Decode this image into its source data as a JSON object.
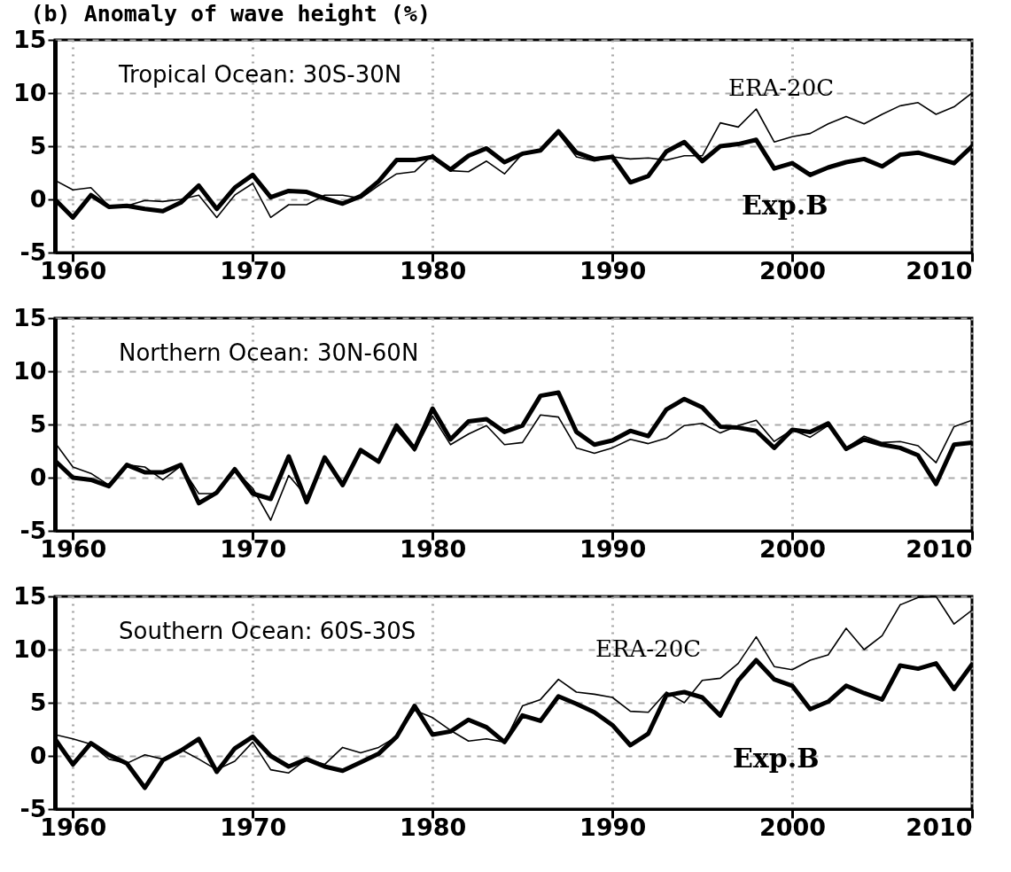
{
  "chart_data": [
    {
      "type": "line",
      "title": "(b) Anomaly of wave height (%)",
      "annotations": [
        "Tropical Ocean: 30S-30N"
      ],
      "xlim": [
        1959,
        2010
      ],
      "xticks": [
        1960,
        1970,
        1980,
        1990,
        2000,
        2010
      ],
      "ylim": [
        -5,
        15
      ],
      "yticks": [
        -5,
        0,
        5,
        10,
        15
      ],
      "grid": true,
      "marker": "none",
      "line_style": "solid",
      "x": [
        1959,
        1960,
        1961,
        1962,
        1963,
        1964,
        1965,
        1966,
        1967,
        1968,
        1969,
        1970,
        1971,
        1972,
        1973,
        1974,
        1975,
        1976,
        1977,
        1978,
        1979,
        1980,
        1981,
        1982,
        1983,
        1984,
        1985,
        1986,
        1987,
        1988,
        1989,
        1990,
        1991,
        1992,
        1993,
        1994,
        1995,
        1996,
        1997,
        1998,
        1999,
        2000,
        2001,
        2002,
        2003,
        2004,
        2005,
        2006,
        2007,
        2008,
        2009,
        2010
      ],
      "series": [
        {
          "name": "Exp.B",
          "color": "#000000",
          "values": [
            0,
            -1.7,
            0.4,
            -0.7,
            -0.6,
            -0.9,
            -1.1,
            -0.3,
            1.3,
            -0.9,
            1.1,
            2.3,
            0.2,
            0.8,
            0.7,
            0.1,
            -0.4,
            0.3,
            1.7,
            3.7,
            3.7,
            4.0,
            2.8,
            4.1,
            4.8,
            3.5,
            4.3,
            4.6,
            6.4,
            4.4,
            3.8,
            4.0,
            1.6,
            2.2,
            4.5,
            5.4,
            3.6,
            5.0,
            5.2,
            5.6,
            2.9,
            3.4,
            2.3,
            3.0,
            3.5,
            3.8,
            3.1,
            4.2,
            4.4,
            3.9,
            3.4,
            5.0
          ]
        },
        {
          "name": "ERA-20C",
          "color": "#000000",
          "values": [
            1.8,
            0.9,
            1.1,
            -0.6,
            -0.6,
            -0.1,
            -0.2,
            0,
            0.4,
            -1.7,
            0.4,
            1.5,
            -1.7,
            -0.5,
            -0.5,
            0.4,
            0.4,
            0.1,
            1.3,
            2.4,
            2.6,
            4.2,
            2.7,
            2.6,
            3.6,
            2.4,
            4.3,
            4.7,
            6.2,
            4.0,
            3.6,
            4.0,
            3.8,
            3.9,
            3.7,
            4.1,
            4.1,
            7.2,
            6.8,
            8.5,
            5.4,
            5.9,
            6.2,
            7.1,
            7.8,
            7.1,
            8.0,
            8.8,
            9.1,
            8.0,
            8.7,
            10.0
          ]
        }
      ]
    },
    {
      "type": "line",
      "annotations": [
        "Northern Ocean: 30N-60N"
      ],
      "xlim": [
        1959,
        2010
      ],
      "xticks": [
        1960,
        1970,
        1980,
        1990,
        2000,
        2010
      ],
      "ylim": [
        -5,
        15
      ],
      "yticks": [
        -5,
        0,
        5,
        10,
        15
      ],
      "grid": true,
      "marker": "none",
      "line_style": "solid",
      "x": [
        1959,
        1960,
        1961,
        1962,
        1963,
        1964,
        1965,
        1966,
        1967,
        1968,
        1969,
        1970,
        1971,
        1972,
        1973,
        1974,
        1975,
        1976,
        1977,
        1978,
        1979,
        1980,
        1981,
        1982,
        1983,
        1984,
        1985,
        1986,
        1987,
        1988,
        1989,
        1990,
        1991,
        1992,
        1993,
        1994,
        1995,
        1996,
        1997,
        1998,
        1999,
        2000,
        2001,
        2002,
        2003,
        2004,
        2005,
        2006,
        2007,
        2008,
        2009,
        2010
      ],
      "series": [
        {
          "color": "#000000",
          "values": [
            1.6,
            0,
            -0.2,
            -0.8,
            1.2,
            0.5,
            0.5,
            1.2,
            -2.4,
            -1.4,
            0.8,
            -1.5,
            -2.0,
            2.0,
            -2.3,
            1.9,
            -0.7,
            2.6,
            1.5,
            4.9,
            2.7,
            6.5,
            3.6,
            5.3,
            5.5,
            4.3,
            4.9,
            7.7,
            8.0,
            4.3,
            3.1,
            3.5,
            4.4,
            3.9,
            6.4,
            7.4,
            6.6,
            4.8,
            4.7,
            4.4,
            2.8,
            4.5,
            4.3,
            5.1,
            2.7,
            3.6,
            3.1,
            2.8,
            2.1,
            -0.6,
            3.1,
            3.3
          ]
        },
        {
          "color": "#000000",
          "values": [
            3.3,
            1.0,
            0.4,
            -0.7,
            1.2,
            1.0,
            -0.2,
            1.1,
            -1.5,
            -1.5,
            0.7,
            -1.0,
            -4.0,
            0.2,
            -1.8,
            1.7,
            -0.6,
            2.4,
            1.6,
            4.5,
            2.5,
            5.8,
            3.1,
            4.1,
            4.9,
            3.1,
            3.3,
            5.9,
            5.7,
            2.8,
            2.3,
            2.8,
            3.6,
            3.2,
            3.7,
            4.9,
            5.1,
            4.2,
            4.9,
            5.4,
            3.4,
            4.5,
            3.8,
            4.9,
            2.8,
            3.9,
            3.3,
            3.4,
            3.0,
            1.4,
            4.8,
            5.4
          ]
        }
      ]
    },
    {
      "type": "line",
      "annotations": [
        "Southern Ocean: 60S-30S"
      ],
      "xlim": [
        1959,
        2010
      ],
      "xticks": [
        1960,
        1970,
        1980,
        1990,
        2000,
        2010
      ],
      "ylim": [
        -5,
        15
      ],
      "yticks": [
        -5,
        0,
        5,
        10,
        15
      ],
      "grid": true,
      "marker": "none",
      "line_style": "solid",
      "x": [
        1959,
        1960,
        1961,
        1962,
        1963,
        1964,
        1965,
        1966,
        1967,
        1968,
        1969,
        1970,
        1971,
        1972,
        1973,
        1974,
        1975,
        1976,
        1977,
        1978,
        1979,
        1980,
        1981,
        1982,
        1983,
        1984,
        1985,
        1986,
        1987,
        1988,
        1989,
        1990,
        1991,
        1992,
        1993,
        1994,
        1995,
        1996,
        1997,
        1998,
        1999,
        2000,
        2001,
        2002,
        2003,
        2004,
        2005,
        2006,
        2007,
        2008,
        2009,
        2010
      ],
      "series": [
        {
          "name": "Exp.B",
          "color": "#000000",
          "values": [
            1.6,
            -0.8,
            1.2,
            0.1,
            -0.7,
            -3.0,
            -0.4,
            0.5,
            1.6,
            -1.5,
            0.7,
            1.8,
            0,
            -1.0,
            -0.3,
            -1.0,
            -1.4,
            -0.6,
            0.2,
            1.8,
            4.7,
            2.0,
            2.3,
            3.4,
            2.7,
            1.3,
            3.8,
            3.3,
            5.6,
            4.9,
            4.1,
            2.9,
            1.0,
            2.1,
            5.7,
            6.0,
            5.5,
            3.8,
            7.1,
            9.0,
            7.2,
            6.6,
            4.4,
            5.1,
            6.6,
            5.9,
            5.3,
            8.5,
            8.2,
            8.7,
            6.3,
            8.6
          ]
        },
        {
          "name": "ERA-20C",
          "color": "#000000",
          "values": [
            2.0,
            1.6,
            1.1,
            -0.3,
            -0.7,
            0.1,
            -0.3,
            0.6,
            -0.3,
            -1.3,
            -0.5,
            1.3,
            -1.3,
            -1.6,
            -0.3,
            -0.8,
            0.8,
            0.3,
            0.8,
            1.8,
            4.3,
            3.6,
            2.4,
            1.4,
            1.6,
            1.3,
            4.7,
            5.3,
            7.2,
            6.0,
            5.8,
            5.5,
            4.2,
            4.1,
            6.0,
            5.0,
            7.1,
            7.3,
            8.7,
            11.2,
            8.4,
            8.1,
            9.0,
            9.5,
            12.0,
            10.0,
            11.3,
            14.2,
            14.9,
            15.0,
            12.4,
            13.7
          ]
        }
      ]
    }
  ]
}
